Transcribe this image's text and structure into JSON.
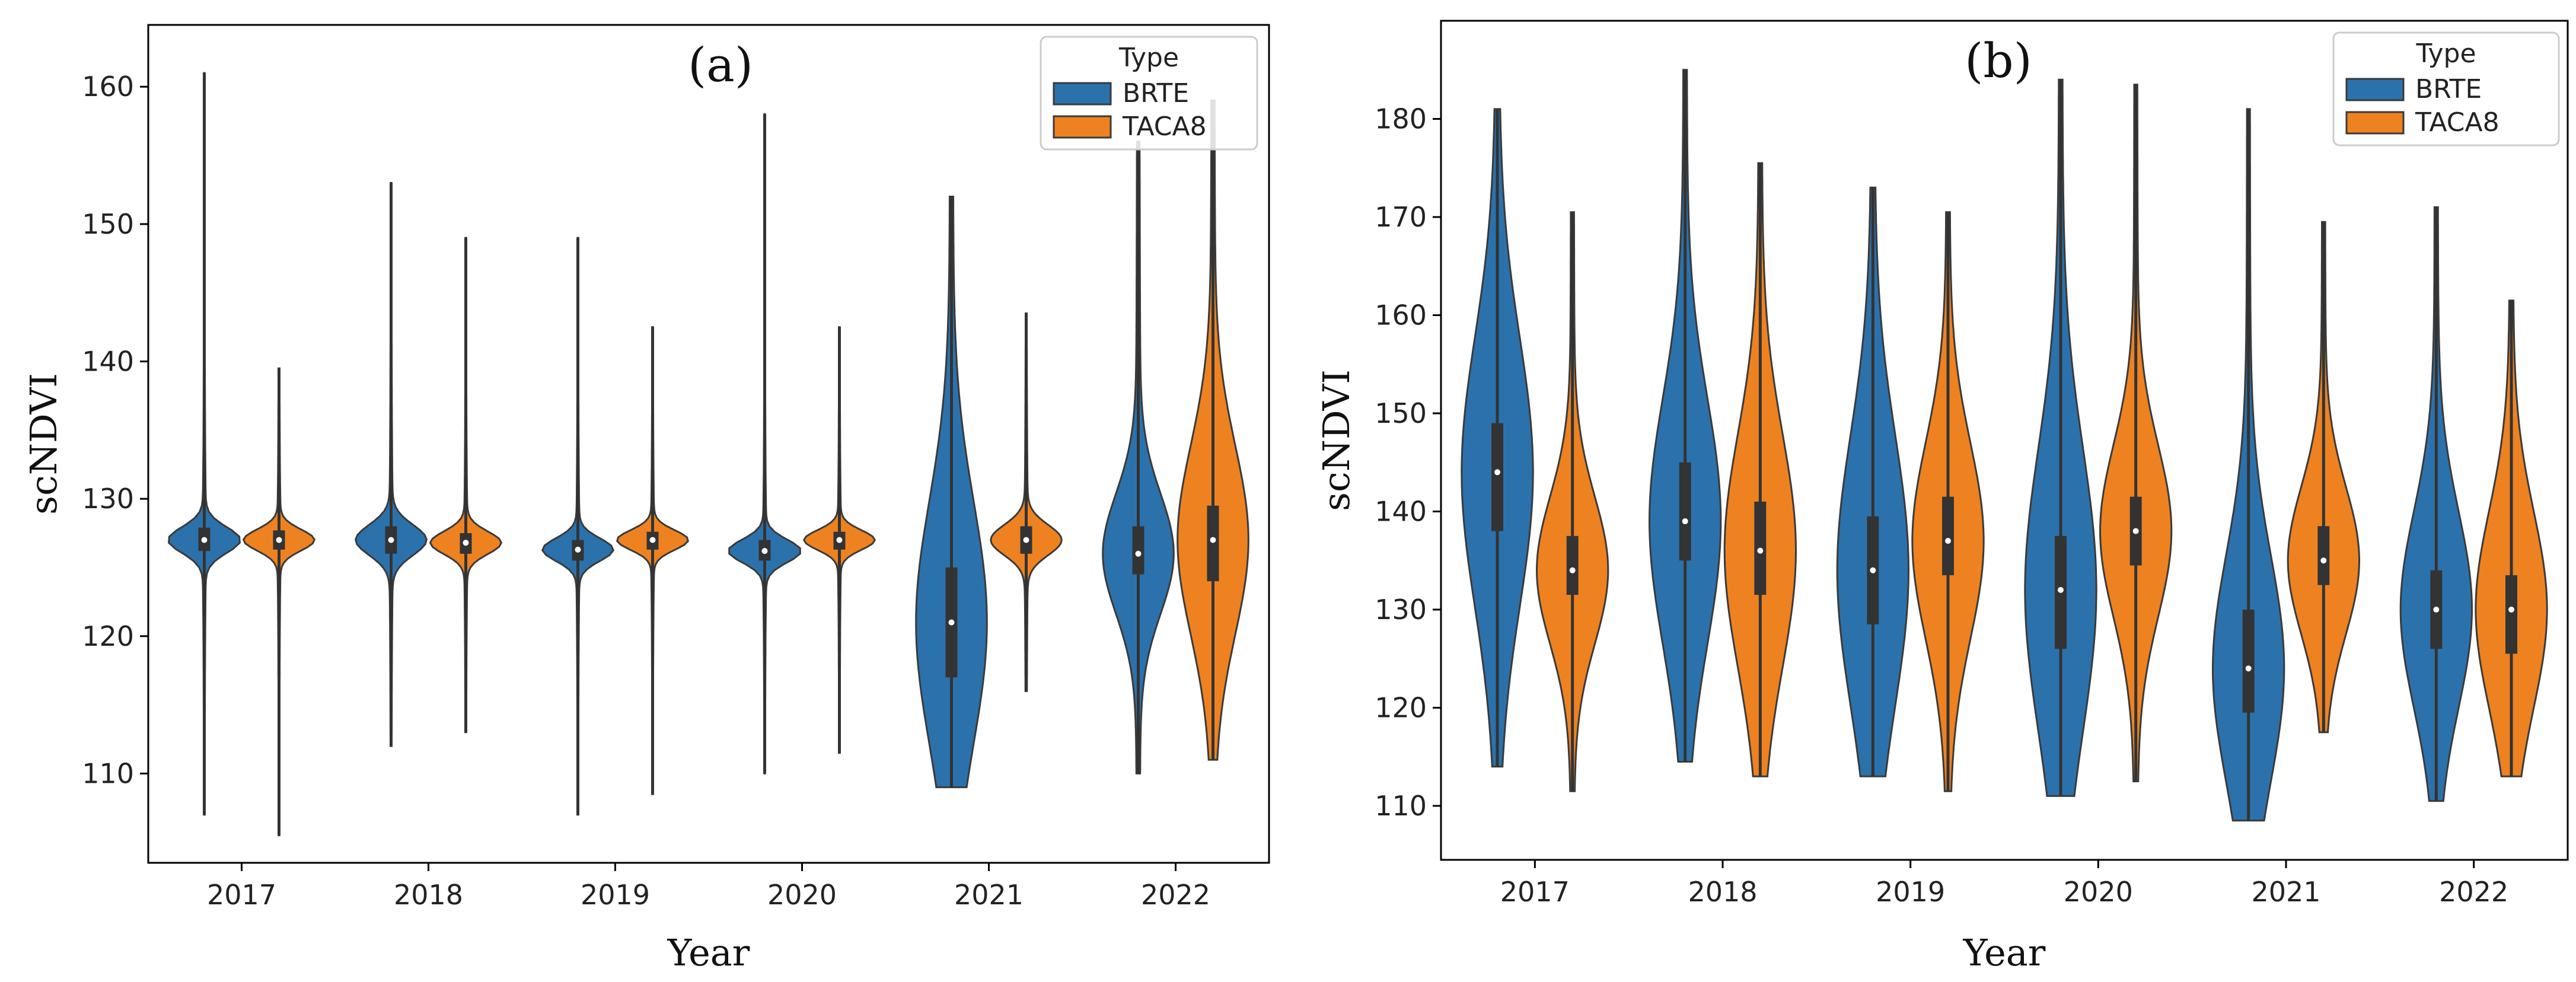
{
  "figure": {
    "domain": "violin-plots"
  },
  "colors": {
    "BRTE": "#2b72ad",
    "TACA8": "#ee8220",
    "inner": "#333333",
    "axis": "#000000",
    "legend_border": "#cccccc"
  },
  "chart_data": [
    {
      "type": "violin",
      "panel_label": "(a)",
      "xlabel": "Year",
      "ylabel": "scNDVI",
      "categories": [
        "2017",
        "2018",
        "2019",
        "2020",
        "2021",
        "2022"
      ],
      "yticks": [
        110,
        120,
        130,
        140,
        150,
        160
      ],
      "ylim": [
        103.5,
        164.5
      ],
      "legend": {
        "title": "Type",
        "entries": [
          "BRTE",
          "TACA8"
        ],
        "position": "upper-right"
      },
      "series": [
        {
          "name": "BRTE",
          "violins": [
            {
              "category": "2017",
              "min": 107.0,
              "max": 161.0,
              "q1": 126.2,
              "median": 127.0,
              "q3": 127.9,
              "shape": "narrow"
            },
            {
              "category": "2018",
              "min": 112.0,
              "max": 153.0,
              "q1": 126.0,
              "median": 127.0,
              "q3": 128.0,
              "shape": "narrow"
            },
            {
              "category": "2019",
              "min": 107.0,
              "max": 149.0,
              "q1": 125.5,
              "median": 126.3,
              "q3": 127.0,
              "shape": "narrow"
            },
            {
              "category": "2020",
              "min": 110.0,
              "max": 158.0,
              "q1": 125.5,
              "median": 126.2,
              "q3": 127.0,
              "shape": "narrow"
            },
            {
              "category": "2021",
              "min": 109.0,
              "max": 152.0,
              "q1": 117.0,
              "median": 121.0,
              "q3": 125.0,
              "shape": "skewed-low"
            },
            {
              "category": "2022",
              "min": 110.0,
              "max": 156.0,
              "q1": 124.5,
              "median": 126.0,
              "q3": 128.0,
              "shape": "wide"
            }
          ]
        },
        {
          "name": "TACA8",
          "violins": [
            {
              "category": "2017",
              "min": 105.5,
              "max": 139.5,
              "q1": 126.3,
              "median": 127.0,
              "q3": 127.7,
              "shape": "narrow"
            },
            {
              "category": "2018",
              "min": 113.0,
              "max": 149.0,
              "q1": 126.0,
              "median": 126.8,
              "q3": 127.5,
              "shape": "narrow"
            },
            {
              "category": "2019",
              "min": 108.5,
              "max": 142.5,
              "q1": 126.3,
              "median": 127.0,
              "q3": 127.6,
              "shape": "narrow"
            },
            {
              "category": "2020",
              "min": 111.5,
              "max": 142.5,
              "q1": 126.3,
              "median": 127.0,
              "q3": 127.6,
              "shape": "narrow"
            },
            {
              "category": "2021",
              "min": 116.0,
              "max": 143.5,
              "q1": 126.0,
              "median": 127.0,
              "q3": 128.0,
              "shape": "narrow"
            },
            {
              "category": "2022",
              "min": 111.0,
              "max": 159.0,
              "q1": 124.0,
              "median": 127.0,
              "q3": 129.5,
              "shape": "wide"
            }
          ]
        }
      ]
    },
    {
      "type": "violin",
      "panel_label": "(b)",
      "xlabel": "Year",
      "ylabel": "scNDVI",
      "categories": [
        "2017",
        "2018",
        "2019",
        "2020",
        "2021",
        "2022"
      ],
      "yticks": [
        110,
        120,
        130,
        140,
        150,
        160,
        170,
        180
      ],
      "ylim": [
        104.5,
        190.0
      ],
      "legend": {
        "title": "Type",
        "entries": [
          "BRTE",
          "TACA8"
        ],
        "position": "upper-right"
      },
      "series": [
        {
          "name": "BRTE",
          "violins": [
            {
              "category": "2017",
              "min": 114.0,
              "max": 181.0,
              "q1": 138.0,
              "median": 144.0,
              "q3": 149.0,
              "shape": "normal"
            },
            {
              "category": "2018",
              "min": 114.5,
              "max": 185.0,
              "q1": 135.0,
              "median": 139.0,
              "q3": 145.0,
              "shape": "normal"
            },
            {
              "category": "2019",
              "min": 113.0,
              "max": 173.0,
              "q1": 128.5,
              "median": 134.0,
              "q3": 139.5,
              "shape": "normal"
            },
            {
              "category": "2020",
              "min": 111.0,
              "max": 184.0,
              "q1": 126.0,
              "median": 132.0,
              "q3": 137.5,
              "shape": "normal"
            },
            {
              "category": "2021",
              "min": 108.5,
              "max": 181.0,
              "q1": 119.5,
              "median": 124.0,
              "q3": 130.0,
              "shape": "skewed-low"
            },
            {
              "category": "2022",
              "min": 110.5,
              "max": 171.0,
              "q1": 126.0,
              "median": 130.0,
              "q3": 134.0,
              "shape": "normal"
            }
          ]
        },
        {
          "name": "TACA8",
          "violins": [
            {
              "category": "2017",
              "min": 111.5,
              "max": 170.5,
              "q1": 131.5,
              "median": 134.0,
              "q3": 137.5,
              "shape": "normal"
            },
            {
              "category": "2018",
              "min": 113.0,
              "max": 175.5,
              "q1": 131.5,
              "median": 136.0,
              "q3": 141.0,
              "shape": "normal"
            },
            {
              "category": "2019",
              "min": 111.5,
              "max": 170.5,
              "q1": 133.5,
              "median": 137.0,
              "q3": 141.5,
              "shape": "normal"
            },
            {
              "category": "2020",
              "min": 112.5,
              "max": 183.5,
              "q1": 134.5,
              "median": 138.0,
              "q3": 141.5,
              "shape": "normal"
            },
            {
              "category": "2021",
              "min": 117.5,
              "max": 169.5,
              "q1": 132.5,
              "median": 135.0,
              "q3": 138.5,
              "shape": "normal"
            },
            {
              "category": "2022",
              "min": 113.0,
              "max": 161.5,
              "q1": 125.5,
              "median": 130.0,
              "q3": 133.5,
              "shape": "normal"
            }
          ]
        }
      ]
    }
  ]
}
